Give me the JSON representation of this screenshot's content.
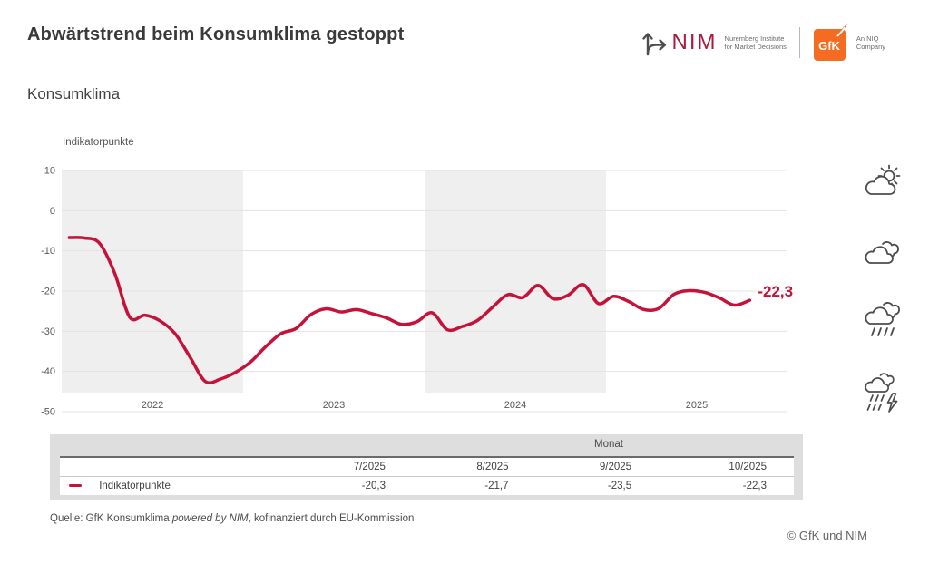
{
  "header": {
    "title": "Abwärtstrend beim Konsumklima gestoppt",
    "nim": {
      "name": "NIM",
      "tagline_line1": "Nuremberg Institute",
      "tagline_line2": "for Market Decisions"
    },
    "gfk": {
      "name": "GfK",
      "tagline_line1": "An NIQ",
      "tagline_line2": "Company"
    }
  },
  "chart": {
    "colors": {
      "line": "#c41238",
      "band": "#efefef",
      "grid": "#e3e3e3",
      "tick_text": "#595959"
    }
  },
  "chart_data": {
    "type": "line",
    "title": "Konsumklima",
    "ylabel": "Indikatorpunkte",
    "ylim": [
      -50,
      10
    ],
    "yticks": [
      10,
      0,
      -10,
      -20,
      -30,
      -40,
      -50
    ],
    "x_years": [
      "2022",
      "2023",
      "2024",
      "2025"
    ],
    "shaded_years": [
      "2022",
      "2024"
    ],
    "grid": true,
    "legend_position": "table-below",
    "end_label": "-22,3",
    "series": [
      {
        "name": "Indikatorpunkte",
        "color": "#c41238",
        "months": [
          "1/2022",
          "2/2022",
          "3/2022",
          "4/2022",
          "5/2022",
          "6/2022",
          "7/2022",
          "8/2022",
          "9/2022",
          "10/2022",
          "11/2022",
          "12/2022",
          "1/2023",
          "2/2023",
          "3/2023",
          "4/2023",
          "5/2023",
          "6/2023",
          "7/2023",
          "8/2023",
          "9/2023",
          "10/2023",
          "11/2023",
          "12/2023",
          "1/2024",
          "2/2024",
          "3/2024",
          "4/2024",
          "5/2024",
          "6/2024",
          "7/2024",
          "8/2024",
          "9/2024",
          "10/2024",
          "11/2024",
          "12/2024",
          "1/2025",
          "2/2025",
          "3/2025",
          "4/2025",
          "5/2025",
          "6/2025",
          "7/2025",
          "8/2025",
          "9/2025",
          "10/2025"
        ],
        "values": [
          -6.7,
          -6.8,
          -8.1,
          -15.5,
          -26.5,
          -26.0,
          -27.4,
          -30.6,
          -36.5,
          -42.5,
          -41.9,
          -40.2,
          -37.6,
          -33.8,
          -30.6,
          -29.3,
          -25.8,
          -24.4,
          -25.2,
          -24.6,
          -25.6,
          -26.7,
          -28.3,
          -27.6,
          -25.4,
          -29.6,
          -28.8,
          -27.3,
          -24.0,
          -20.9,
          -21.6,
          -18.6,
          -21.9,
          -21.0,
          -18.4,
          -23.1,
          -21.3,
          -22.6,
          -24.6,
          -24.3,
          -20.8,
          -19.9,
          -20.3,
          -21.7,
          -23.5,
          -22.3
        ]
      }
    ]
  },
  "weather_icons": [
    {
      "name": "sun-behind-cloud-icon"
    },
    {
      "name": "clouds-icon"
    },
    {
      "name": "rain-cloud-icon"
    },
    {
      "name": "thunderstorm-cloud-icon"
    }
  ],
  "table": {
    "group_header": "Monat",
    "columns": [
      "7/2025",
      "8/2025",
      "9/2025",
      "10/2025"
    ],
    "rows": [
      {
        "label": "Indikatorpunkte",
        "values": [
          "-20,3",
          "-21,7",
          "-23,5",
          "-22,3"
        ]
      }
    ]
  },
  "footer": {
    "source_prefix": "Quelle: GfK Konsumklima ",
    "source_italic": "powered by NIM",
    "source_suffix": ", kofinanziert durch EU-Kommission",
    "copyright": "© GfK und NIM"
  }
}
